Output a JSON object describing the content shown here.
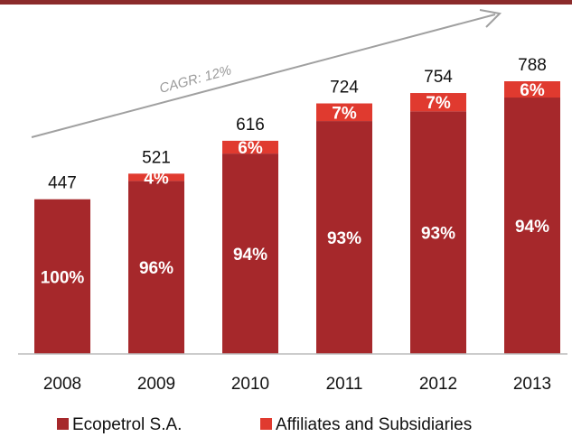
{
  "chart_data": {
    "type": "bar",
    "stacked": true,
    "categories": [
      "2008",
      "2009",
      "2010",
      "2011",
      "2012",
      "2013"
    ],
    "totals": [
      447,
      521,
      616,
      724,
      754,
      788
    ],
    "series": [
      {
        "name": "Ecopetrol S.A.",
        "color": "#a6282b",
        "values": [
          447,
          500,
          579,
          673,
          701,
          741
        ],
        "share_labels": [
          "100%",
          "96%",
          "94%",
          "93%",
          "93%",
          "94%"
        ]
      },
      {
        "name": "Affiliates and Subsidiaries",
        "color": "#e03a2f",
        "values": [
          0,
          21,
          37,
          51,
          53,
          47
        ],
        "share_labels": [
          "",
          "4%",
          "6%",
          "7%",
          "7%",
          "6%"
        ]
      }
    ],
    "annotation": "CAGR: 12%",
    "ylim": [
      0,
      800
    ],
    "grid": false,
    "legend_position": "bottom"
  },
  "colors": {
    "top_bar": "#8b2b2b",
    "axis": "#bbbbbb",
    "arrow": "#a0a0a0"
  }
}
